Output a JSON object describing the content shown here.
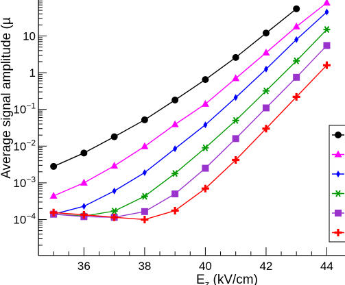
{
  "chart_data": {
    "type": "line",
    "xlabel": "E",
    "xlabel_sub": "z",
    "xlabel_unit": " (kV/cm)",
    "ylabel": "Average signal amplitude (µ",
    "y_scale": "log",
    "xlim": [
      34.5,
      44.6
    ],
    "ylim_exponent": [
      -4.98,
      1.98
    ],
    "x_ticks": [
      36,
      38,
      40,
      42,
      44
    ],
    "y_ticks": [
      {
        "exp": 1,
        "label": "10"
      },
      {
        "exp": 0,
        "label": "1"
      },
      {
        "exp": -1,
        "base": "10",
        "sup": "−1"
      },
      {
        "exp": -2,
        "base": "10",
        "sup": "−2"
      },
      {
        "exp": -3,
        "base": "10",
        "sup": "−3"
      },
      {
        "exp": -4,
        "base": "10",
        "sup": "−4"
      }
    ],
    "legend_position": "right (clipped)",
    "series": [
      {
        "color": "#000000",
        "marker": "circle",
        "x": [
          35,
          36,
          37,
          38,
          39,
          40,
          41,
          42,
          43
        ],
        "y": [
          0.0028,
          0.0065,
          0.018,
          0.052,
          0.18,
          0.65,
          2.6,
          12,
          55
        ]
      },
      {
        "color": "#ff00ff",
        "marker": "triangle",
        "x": [
          35,
          36,
          37,
          38,
          39,
          40,
          41,
          42,
          43,
          44
        ],
        "y": [
          0.00044,
          0.001,
          0.0029,
          0.0098,
          0.039,
          0.14,
          0.7,
          3.5,
          18,
          80
        ]
      },
      {
        "color": "#0000ff",
        "marker": "diamond",
        "x": [
          35,
          36,
          37,
          38,
          39,
          40,
          41,
          42,
          43,
          44
        ],
        "y": [
          0.00014,
          0.00023,
          0.0006,
          0.0019,
          0.0085,
          0.038,
          0.21,
          1.25,
          8,
          45
        ]
      },
      {
        "color": "#009900",
        "marker": "star",
        "x": [
          35,
          36,
          37,
          38,
          39,
          40,
          41,
          42,
          43,
          44
        ],
        "y": [
          0.00014,
          0.000125,
          0.00017,
          0.00043,
          0.0018,
          0.009,
          0.05,
          0.32,
          2.1,
          15
        ]
      },
      {
        "color": "#9933cc",
        "marker": "square",
        "x": [
          35,
          36,
          37,
          38,
          39,
          40,
          41,
          42,
          43,
          44
        ],
        "y": [
          0.00014,
          0.00012,
          0.000115,
          0.000165,
          0.0005,
          0.0025,
          0.016,
          0.11,
          0.75,
          5.5
        ]
      },
      {
        "color": "#ff0000",
        "marker": "cross",
        "x": [
          35,
          36,
          37,
          38,
          39,
          40,
          41,
          42,
          43,
          44
        ],
        "y": [
          0.000155,
          0.000135,
          0.000115,
          0.0001,
          0.000175,
          0.0007,
          0.0042,
          0.03,
          0.22,
          1.6
        ]
      }
    ]
  }
}
